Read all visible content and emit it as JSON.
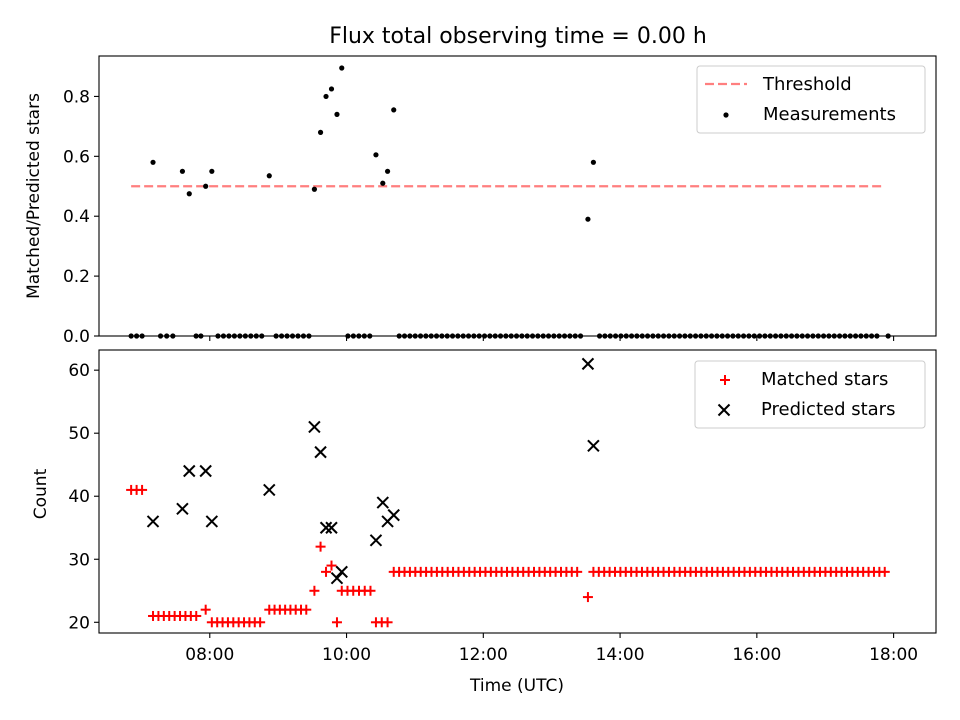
{
  "title": "Flux total observing time = 0.00 h",
  "colors": {
    "threshold": "#ff7f7f",
    "measurement": "#000000",
    "matched": "#ff0000",
    "predicted": "#000000"
  },
  "chart_data": [
    {
      "type": "scatter",
      "ylabel": "Matched/Predicted stars",
      "xlim": [
        6.38,
        18.62
      ],
      "ylim": [
        0,
        0.935
      ],
      "yticks": [
        "0.0",
        "0.2",
        "0.4",
        "0.6",
        "0.8"
      ],
      "ytick_values": [
        0,
        0.2,
        0.4,
        0.6,
        0.8
      ],
      "legend": {
        "position": "top-right",
        "entries": [
          "Threshold",
          "Measurements"
        ]
      },
      "threshold": {
        "name": "Threshold",
        "x": [
          6.85,
          17.85
        ],
        "y": 0.5
      },
      "measurements": {
        "name": "Measurements",
        "points": [
          [
            7.17,
            0.58
          ],
          [
            7.6,
            0.55
          ],
          [
            7.7,
            0.475
          ],
          [
            7.94,
            0.5
          ],
          [
            8.03,
            0.55
          ],
          [
            8.87,
            0.535
          ],
          [
            9.53,
            0.49
          ],
          [
            9.62,
            0.68
          ],
          [
            9.7,
            0.8
          ],
          [
            9.78,
            0.825
          ],
          [
            9.86,
            0.74
          ],
          [
            9.93,
            0.895
          ],
          [
            10.43,
            0.605
          ],
          [
            10.53,
            0.51
          ],
          [
            10.6,
            0.55
          ],
          [
            10.69,
            0.755
          ],
          [
            13.53,
            0.39
          ],
          [
            13.61,
            0.58
          ]
        ],
        "zero_ranges": [
          [
            6.85,
            7.07,
            0.08
          ],
          [
            7.28,
            7.5,
            0.09
          ],
          [
            7.8,
            7.87,
            0.07
          ],
          [
            8.12,
            8.78,
            0.08
          ],
          [
            8.97,
            9.45,
            0.08
          ],
          [
            10.02,
            10.35,
            0.08
          ],
          [
            10.77,
            13.45,
            0.078
          ],
          [
            13.7,
            17.8,
            0.078
          ],
          [
            17.92,
            17.92,
            1
          ]
        ]
      }
    },
    {
      "type": "scatter",
      "xlabel": "Time (UTC)",
      "ylabel": "Count",
      "xlim": [
        6.38,
        18.62
      ],
      "ylim": [
        18.3,
        63.2
      ],
      "yticks": [
        "20",
        "30",
        "40",
        "50",
        "60"
      ],
      "ytick_values": [
        20,
        30,
        40,
        50,
        60
      ],
      "xticks": [
        "08:00",
        "10:00",
        "12:00",
        "14:00",
        "16:00",
        "18:00"
      ],
      "xtick_values": [
        8,
        10,
        12,
        14,
        16,
        18
      ],
      "legend": {
        "position": "top-right",
        "entries": [
          "Matched stars",
          "Predicted stars"
        ]
      },
      "matched": {
        "name": "Matched stars",
        "ranges": [
          [
            6.85,
            7.07,
            41,
            0.08
          ],
          [
            7.17,
            7.87,
            21,
            0.079
          ],
          [
            7.94,
            7.94,
            22,
            1
          ],
          [
            8.03,
            8.78,
            20,
            0.0785
          ],
          [
            8.87,
            9.45,
            22,
            0.0773
          ],
          [
            9.53,
            9.53,
            25,
            1
          ],
          [
            9.62,
            9.62,
            32,
            1
          ],
          [
            9.7,
            9.7,
            28,
            1
          ],
          [
            9.78,
            9.78,
            29,
            1
          ],
          [
            9.86,
            9.86,
            20,
            1
          ],
          [
            9.93,
            10.35,
            25,
            0.084
          ],
          [
            10.43,
            10.6,
            20,
            0.085
          ],
          [
            10.69,
            13.45,
            28,
            0.0789
          ],
          [
            13.53,
            13.53,
            24,
            1
          ],
          [
            13.61,
            17.92,
            28,
            0.0789
          ]
        ]
      },
      "predicted": {
        "name": "Predicted stars",
        "points": [
          [
            7.17,
            36
          ],
          [
            7.6,
            38
          ],
          [
            7.7,
            44
          ],
          [
            7.94,
            44
          ],
          [
            8.03,
            36
          ],
          [
            8.87,
            41
          ],
          [
            9.53,
            51
          ],
          [
            9.62,
            47
          ],
          [
            9.7,
            35
          ],
          [
            9.78,
            35
          ],
          [
            9.86,
            27
          ],
          [
            9.93,
            28
          ],
          [
            10.43,
            33
          ],
          [
            10.53,
            39
          ],
          [
            10.6,
            36
          ],
          [
            10.69,
            37
          ],
          [
            13.53,
            61
          ],
          [
            13.61,
            48
          ]
        ]
      }
    }
  ]
}
